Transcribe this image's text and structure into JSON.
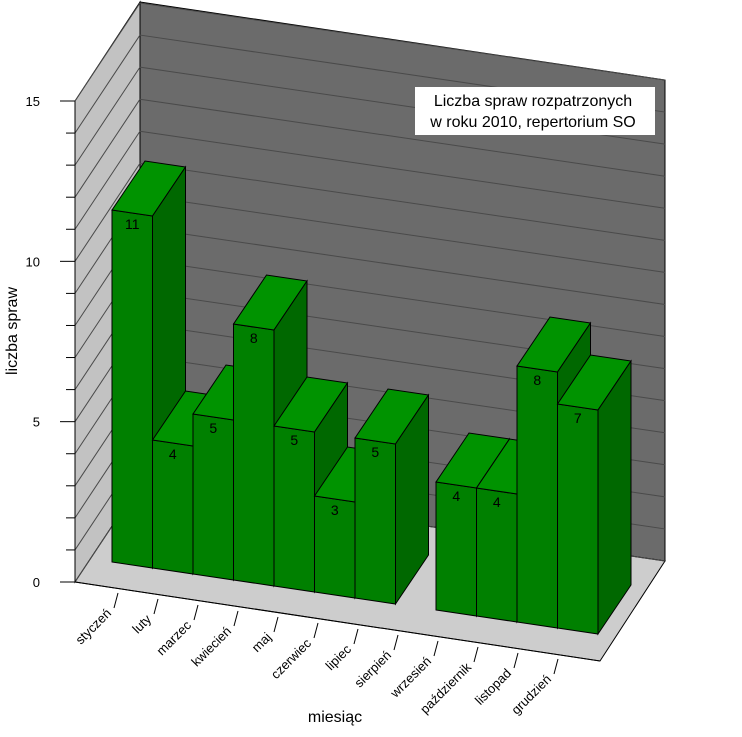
{
  "chart_data": {
    "type": "bar",
    "title_lines": [
      "Liczba spraw rozpatrzonych",
      "w roku 2010, repertorium SO"
    ],
    "xlabel": "miesiąc",
    "ylabel": "liczba spraw",
    "ylim": [
      0,
      15
    ],
    "yticks": [
      0,
      5,
      10,
      15
    ],
    "categories": [
      "styczeń",
      "luty",
      "marzec",
      "kwiecień",
      "maj",
      "czerwiec",
      "lipiec",
      "sierpień",
      "wrzesień",
      "październik",
      "listopad",
      "grudzień"
    ],
    "values": [
      11,
      4,
      5,
      8,
      5,
      3,
      5,
      0,
      4,
      4,
      8,
      7
    ],
    "value_labels": [
      "11",
      "4",
      "5",
      "8",
      "5",
      "3",
      "5",
      "",
      "4",
      "4",
      "8",
      "7"
    ],
    "grid": true,
    "style": "3d",
    "colors": {
      "bar_front": "#008000",
      "bar_top": "#009300",
      "bar_side": "#006800",
      "back_wall": "#6b6b6b",
      "side_wall": "#c2c2c2",
      "floor": "#cdcdcd",
      "grid": "#4a4a4a"
    }
  }
}
